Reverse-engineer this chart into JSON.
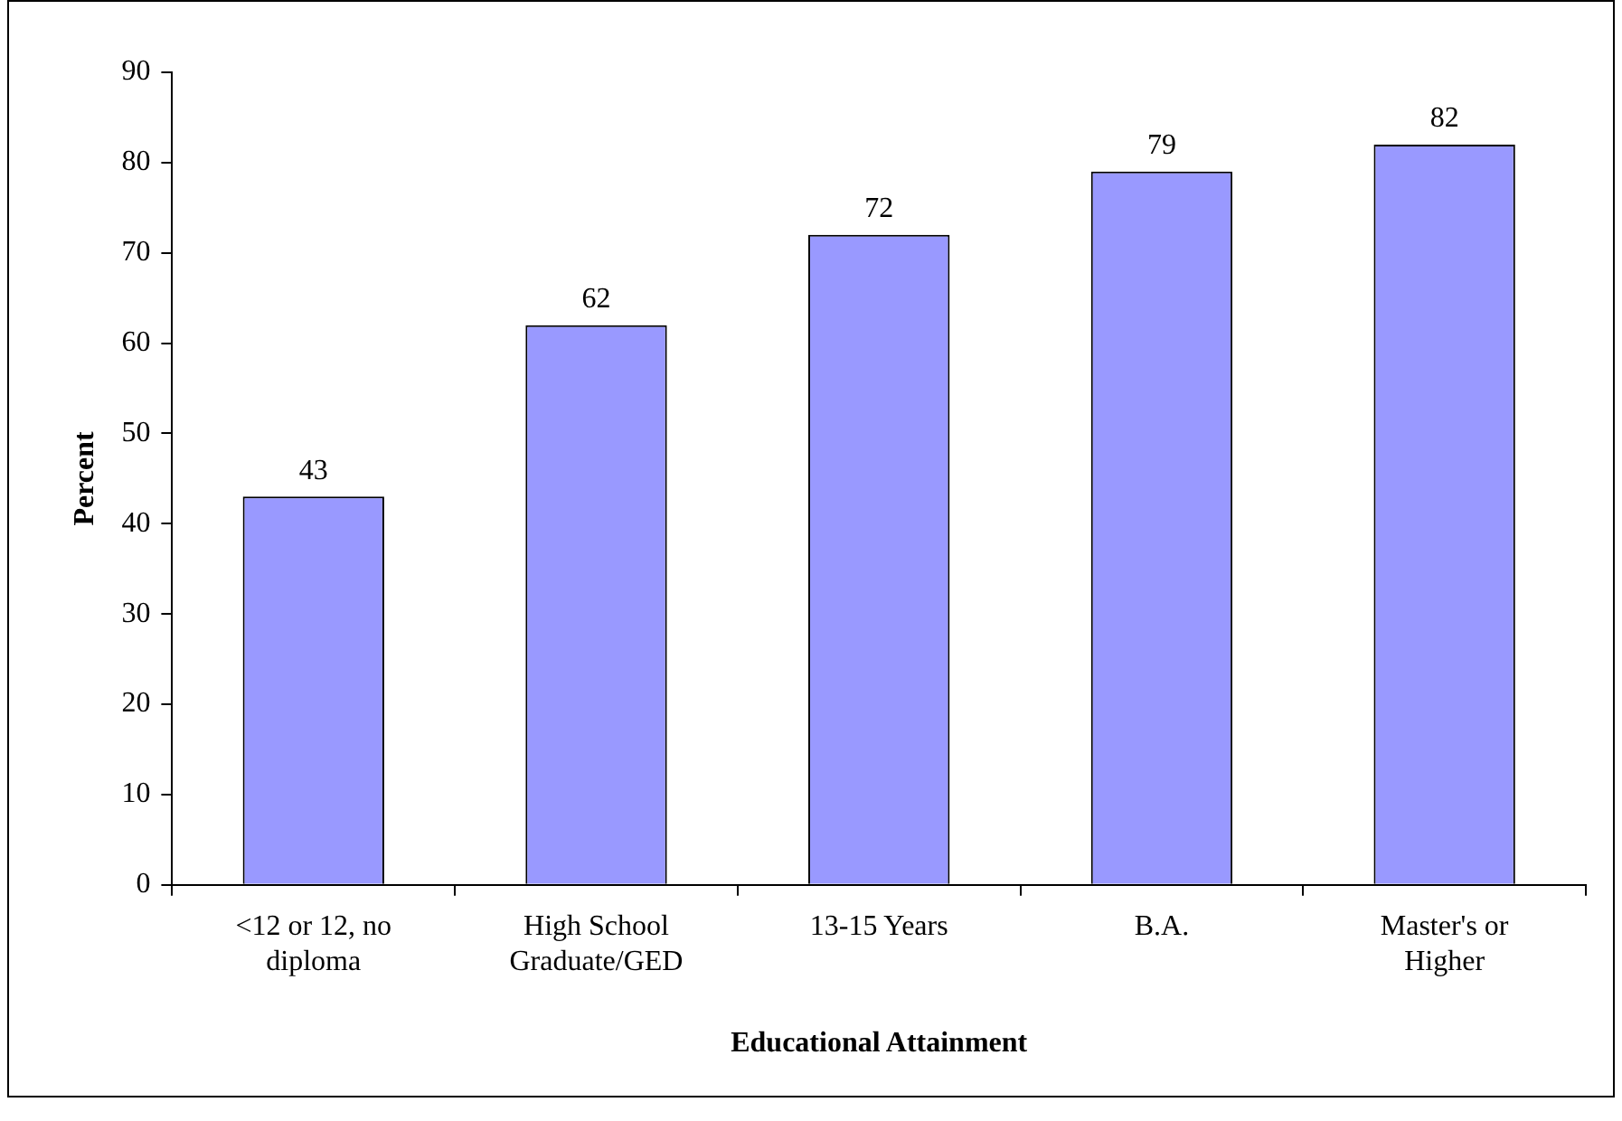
{
  "chart_data": {
    "type": "bar",
    "xlabel": "Educational Attainment",
    "ylabel": "Percent",
    "categories": [
      "<12 or 12, no diploma",
      "High School Graduate/GED",
      "13-15 Years",
      "B.A.",
      "Master's or Higher"
    ],
    "values": [
      43,
      62,
      72,
      79,
      82
    ],
    "color": "#9999ff",
    "ylim": [
      0,
      90
    ],
    "yticks": [
      0,
      10,
      20,
      30,
      40,
      50,
      60,
      70,
      80,
      90
    ],
    "grid": false,
    "legend": false,
    "data_labels": true
  }
}
